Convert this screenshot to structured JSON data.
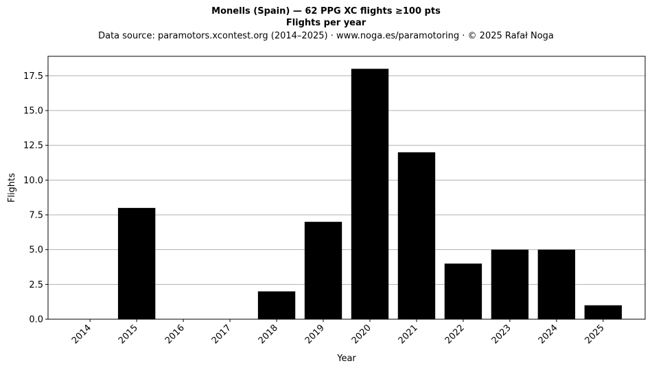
{
  "title_lines": {
    "line1": "Monells (Spain)  —  62 PPG XC flights ≥100 pts",
    "line2": "Flights per year",
    "line3": "Data source: paramotors.xcontest.org (2014–2025)  ·  www.noga.es/paramotoring  ·  © 2025 Rafał Noga"
  },
  "chart_data": {
    "type": "bar",
    "categories": [
      "2014",
      "2015",
      "2016",
      "2017",
      "2018",
      "2019",
      "2020",
      "2021",
      "2022",
      "2023",
      "2024",
      "2025"
    ],
    "values": [
      0,
      8,
      0,
      0,
      2,
      7,
      18,
      12,
      4,
      5,
      5,
      1
    ],
    "xlabel": "Year",
    "ylabel": "Flights",
    "ylim": [
      0,
      18.9
    ],
    "yticks": [
      "0.0",
      "2.5",
      "5.0",
      "7.5",
      "10.0",
      "12.5",
      "15.0",
      "17.5"
    ],
    "ytick_values": [
      0,
      2.5,
      5,
      7.5,
      10,
      12.5,
      15,
      17.5
    ],
    "grid": "y",
    "bar_color": "#000000",
    "grid_color": "#b0b0b0"
  }
}
